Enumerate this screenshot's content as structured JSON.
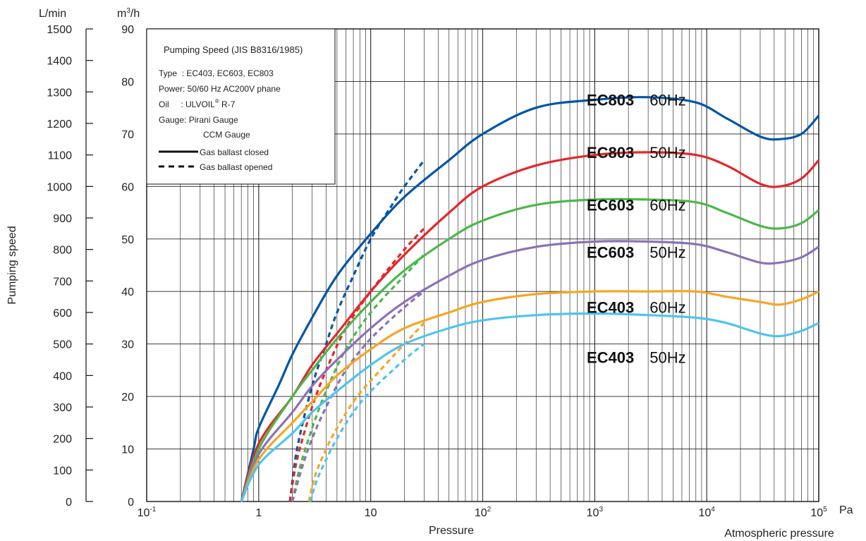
{
  "chart_data": {
    "type": "line",
    "x_scale": "log",
    "xlim": [
      0.1,
      100000
    ],
    "ylim_m3h": [
      0,
      90
    ],
    "ylim_lmin": [
      0,
      1500
    ],
    "x_ticks": [
      {
        "base": "10",
        "exp": "-1"
      },
      {
        "base": "1",
        "exp": ""
      },
      {
        "base": "10",
        "exp": ""
      },
      {
        "base": "10",
        "exp": "2"
      },
      {
        "base": "10",
        "exp": "3"
      },
      {
        "base": "10",
        "exp": "4"
      },
      {
        "base": "10",
        "exp": "5"
      }
    ],
    "x_tick_values": [
      0.1,
      1,
      10,
      100,
      1000,
      10000,
      100000
    ],
    "x_unit": "Pa",
    "xlabel": "Pressure",
    "x_annotation": "Atmospheric pressure",
    "ylabel": "Pumping speed",
    "y_left_unit": "L/min",
    "y_right_unit_base": "m",
    "y_right_unit_sup": "3",
    "y_right_unit_tail": "/h",
    "y_left_ticks": [
      "0",
      "100",
      "200",
      "300",
      "400",
      "500",
      "600",
      "700",
      "800",
      "900",
      "1000",
      "1100",
      "1200",
      "1300",
      "1400",
      "1500"
    ],
    "y_right_ticks": [
      "0",
      "10",
      "20",
      "30",
      "40",
      "50",
      "60",
      "70",
      "80",
      "90"
    ],
    "grid": true,
    "legend": {
      "position": "top-left",
      "title": "Pumping Speed (JIS B8316/1985)",
      "type_line": "Type  : EC403, EC603, EC803",
      "power_line": "Power: 50/60 Hz AC200V phane",
      "oil_prefix": "Oil     : ULVOIL",
      "oil_reg": "®",
      "oil_suffix": " R-7",
      "gauge_line1": "Gauge: Pirani Gauge",
      "gauge_line2": "CCM Gauge",
      "solid_label": "Gas ballast closed",
      "dashed_label": "Gas ballast opened"
    },
    "series": [
      {
        "name": "EC803 60Hz",
        "model": "EC803",
        "freq": "60Hz",
        "color": "#0055a4",
        "closed": [
          [
            0.7,
            0
          ],
          [
            0.9,
            10
          ],
          [
            1,
            14
          ],
          [
            1.5,
            22
          ],
          [
            2,
            28
          ],
          [
            3,
            35
          ],
          [
            5,
            43
          ],
          [
            10,
            51
          ],
          [
            20,
            58
          ],
          [
            50,
            65
          ],
          [
            100,
            70
          ],
          [
            300,
            75
          ],
          [
            1000,
            76.5
          ],
          [
            3000,
            77
          ],
          [
            8000,
            76
          ],
          [
            15000,
            73
          ],
          [
            30000,
            69.5
          ],
          [
            45000,
            69
          ],
          [
            70000,
            70
          ],
          [
            100000,
            73.5
          ]
        ],
        "opened": [
          [
            1.9,
            0
          ],
          [
            2.2,
            10
          ],
          [
            3,
            22
          ],
          [
            4,
            30
          ],
          [
            5,
            36
          ],
          [
            7,
            43
          ],
          [
            10,
            50
          ],
          [
            15,
            56
          ],
          [
            20,
            60
          ],
          [
            30,
            65
          ]
        ]
      },
      {
        "name": "EC803 50Hz",
        "model": "EC803",
        "freq": "50Hz",
        "color": "#e5262b",
        "closed": [
          [
            0.7,
            0
          ],
          [
            1,
            11
          ],
          [
            2,
            20
          ],
          [
            3,
            26
          ],
          [
            5,
            32
          ],
          [
            10,
            40
          ],
          [
            20,
            47
          ],
          [
            50,
            55
          ],
          [
            100,
            60
          ],
          [
            300,
            64
          ],
          [
            1000,
            66
          ],
          [
            3000,
            66.5
          ],
          [
            8000,
            66
          ],
          [
            15000,
            64
          ],
          [
            30000,
            60.5
          ],
          [
            45000,
            60
          ],
          [
            70000,
            61.5
          ],
          [
            100000,
            65
          ]
        ],
        "opened": [
          [
            1.9,
            0
          ],
          [
            2.2,
            8
          ],
          [
            3,
            18
          ],
          [
            4,
            25
          ],
          [
            6,
            33
          ],
          [
            10,
            40
          ],
          [
            20,
            48
          ],
          [
            30,
            52
          ]
        ]
      },
      {
        "name": "EC603 60Hz",
        "model": "EC603",
        "freq": "60Hz",
        "color": "#4cb749",
        "closed": [
          [
            0.7,
            0
          ],
          [
            1,
            10
          ],
          [
            2,
            20
          ],
          [
            3,
            25
          ],
          [
            5,
            31
          ],
          [
            10,
            38
          ],
          [
            20,
            44
          ],
          [
            50,
            50
          ],
          [
            100,
            53.5
          ],
          [
            300,
            56.5
          ],
          [
            1000,
            57.5
          ],
          [
            3000,
            57.5
          ],
          [
            8000,
            57
          ],
          [
            15000,
            55
          ],
          [
            30000,
            52.5
          ],
          [
            45000,
            52
          ],
          [
            70000,
            53
          ],
          [
            100000,
            55.5
          ]
        ],
        "opened": [
          [
            2,
            0
          ],
          [
            2.3,
            6
          ],
          [
            3,
            14
          ],
          [
            4,
            21
          ],
          [
            6,
            29
          ],
          [
            10,
            36
          ],
          [
            20,
            43
          ],
          [
            30,
            47
          ]
        ]
      },
      {
        "name": "EC603 50Hz",
        "model": "EC603",
        "freq": "50Hz",
        "color": "#8b71b5",
        "closed": [
          [
            0.7,
            0
          ],
          [
            1,
            9
          ],
          [
            2,
            17
          ],
          [
            3,
            22
          ],
          [
            5,
            27
          ],
          [
            10,
            33
          ],
          [
            20,
            38
          ],
          [
            50,
            43
          ],
          [
            100,
            46
          ],
          [
            300,
            48.5
          ],
          [
            1000,
            49.5
          ],
          [
            3000,
            49.5
          ],
          [
            8000,
            49
          ],
          [
            15000,
            47.5
          ],
          [
            30000,
            45.5
          ],
          [
            45000,
            45.5
          ],
          [
            70000,
            46.5
          ],
          [
            100000,
            48.5
          ]
        ],
        "opened": [
          [
            2,
            0
          ],
          [
            2.4,
            6
          ],
          [
            3,
            12
          ],
          [
            4,
            18
          ],
          [
            6,
            25
          ],
          [
            10,
            31
          ],
          [
            20,
            37
          ],
          [
            30,
            40
          ]
        ]
      },
      {
        "name": "EC403 60Hz",
        "model": "EC403",
        "freq": "60Hz",
        "color": "#f5a623",
        "closed": [
          [
            0.7,
            0
          ],
          [
            1,
            8
          ],
          [
            2,
            15
          ],
          [
            3,
            19
          ],
          [
            5,
            24
          ],
          [
            10,
            29
          ],
          [
            20,
            33
          ],
          [
            50,
            36
          ],
          [
            100,
            38
          ],
          [
            300,
            39.5
          ],
          [
            1000,
            40
          ],
          [
            3000,
            40
          ],
          [
            8000,
            40
          ],
          [
            15000,
            39
          ],
          [
            30000,
            38
          ],
          [
            45000,
            37.5
          ],
          [
            70000,
            38.5
          ],
          [
            100000,
            40
          ]
        ],
        "opened": [
          [
            2.8,
            0
          ],
          [
            3.2,
            5
          ],
          [
            4,
            10
          ],
          [
            5,
            14
          ],
          [
            7,
            19
          ],
          [
            10,
            23
          ],
          [
            20,
            30
          ],
          [
            30,
            34
          ]
        ]
      },
      {
        "name": "EC403 50Hz",
        "model": "EC403",
        "freq": "50Hz",
        "color": "#4fc3ef",
        "closed": [
          [
            0.7,
            0
          ],
          [
            1,
            7
          ],
          [
            2,
            13
          ],
          [
            3,
            17
          ],
          [
            5,
            21
          ],
          [
            10,
            26
          ],
          [
            20,
            30
          ],
          [
            50,
            33
          ],
          [
            100,
            34.5
          ],
          [
            300,
            35.5
          ],
          [
            1000,
            35.8
          ],
          [
            3000,
            35.5
          ],
          [
            8000,
            35
          ],
          [
            15000,
            34
          ],
          [
            30000,
            32
          ],
          [
            45000,
            31.5
          ],
          [
            70000,
            32.5
          ],
          [
            100000,
            34
          ]
        ],
        "opened": [
          [
            2.9,
            0
          ],
          [
            3.3,
            4
          ],
          [
            4,
            8
          ],
          [
            5,
            12
          ],
          [
            7,
            17
          ],
          [
            10,
            21
          ],
          [
            20,
            27
          ],
          [
            30,
            30
          ]
        ]
      }
    ]
  }
}
